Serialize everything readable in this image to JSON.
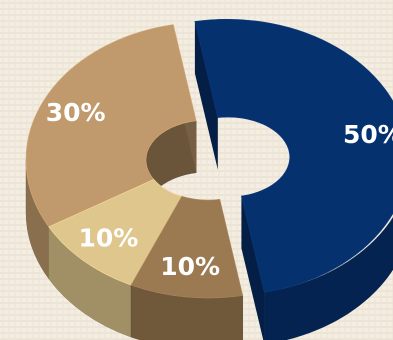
{
  "chart_data": {
    "type": "pie",
    "variant": "3d-donut-exploded",
    "title": "",
    "slices": [
      {
        "label": "50%",
        "value": 50,
        "color": "#06316f"
      },
      {
        "label": "10%",
        "value": 10,
        "color": "#9b7a52"
      },
      {
        "label": "10%",
        "value": 10,
        "color": "#dfc68c"
      },
      {
        "label": "30%",
        "value": 30,
        "color": "#c09a6c"
      }
    ],
    "exploded_slice": "50%",
    "legend": "none",
    "background": "#f2ebe0"
  }
}
